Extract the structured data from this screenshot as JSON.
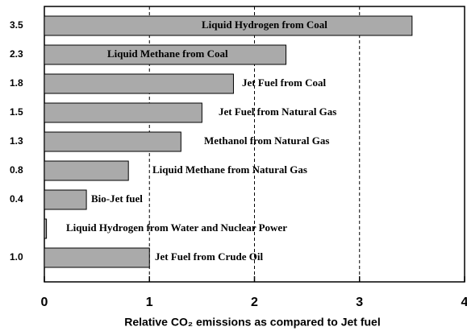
{
  "chart_data": {
    "type": "barh",
    "categories": [
      "Liquid Hydrogen from Coal",
      "Liquid Methane from Coal",
      "Jet Fuel from Coal",
      "Jet Fuel from Natural Gas",
      "Methanol from Natural Gas",
      "Liquid Methane from Natural Gas",
      "Bio-Jet fuel",
      "Liquid Hydrogen from Water and Nuclear Power",
      "Jet Fuel from Crude Oil"
    ],
    "values": [
      3.5,
      2.3,
      1.8,
      1.5,
      1.3,
      0.8,
      0.4,
      0.02,
      1.0
    ],
    "value_labels": [
      "3.5",
      "2.3",
      "1.8",
      "1.5",
      "1.3",
      "0.8",
      "0.4",
      null,
      "1.0"
    ],
    "color": "#aaaaaa",
    "xlim": [
      0,
      4
    ],
    "xticks": [
      0,
      1,
      2,
      3,
      4
    ],
    "grid": true,
    "xlabel": "Relative CO₂ emissions as compared to Jet fuel"
  }
}
